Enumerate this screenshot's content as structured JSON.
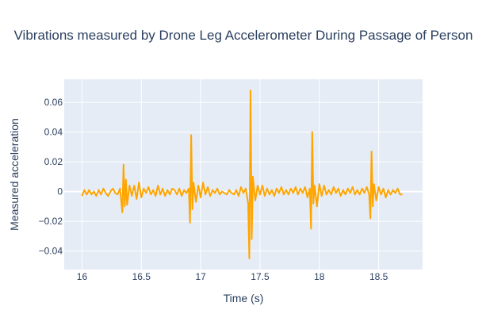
{
  "chart_data": {
    "type": "line",
    "title": "Vibrations measured by Drone Leg Accelerometer During Passage of Person",
    "xlabel": "Time (s)",
    "ylabel": "Measured acceleration",
    "xlim": [
      15.85,
      18.87
    ],
    "ylim": [
      -0.0525,
      0.0755
    ],
    "xticks": [
      16,
      16.5,
      17,
      17.5,
      18,
      18.5
    ],
    "xtick_labels": [
      "16",
      "16.5",
      "17",
      "17.5",
      "18",
      "18.5"
    ],
    "yticks": [
      -0.04,
      -0.02,
      0,
      0.02,
      0.04,
      0.06
    ],
    "ytick_labels": [
      "−0.04",
      "−0.02",
      "0",
      "0.02",
      "0.04",
      "0.06"
    ],
    "grid": true,
    "colors": {
      "line": "#FFA500",
      "plot_bg": "#E5ECF6",
      "grid": "#ffffff",
      "text": "#2a3f5f"
    },
    "series": [
      {
        "x": [
          16.0,
          16.02,
          16.04,
          16.06,
          16.08,
          16.1,
          16.12,
          16.14,
          16.16,
          16.18,
          16.2,
          16.22,
          16.24,
          16.26,
          16.28,
          16.3,
          16.32,
          16.34,
          16.35,
          16.36,
          16.37,
          16.38,
          16.4,
          16.42,
          16.44,
          16.46,
          16.48,
          16.5,
          16.52,
          16.54,
          16.56,
          16.58,
          16.6,
          16.62,
          16.64,
          16.66,
          16.68,
          16.7,
          16.72,
          16.74,
          16.76,
          16.78,
          16.8,
          16.82,
          16.84,
          16.86,
          16.88,
          16.9,
          16.91,
          16.92,
          16.93,
          16.94,
          16.96,
          16.98,
          17.0,
          17.02,
          17.04,
          17.06,
          17.08,
          17.1,
          17.12,
          17.14,
          17.16,
          17.18,
          17.2,
          17.22,
          17.24,
          17.26,
          17.28,
          17.3,
          17.32,
          17.34,
          17.36,
          17.38,
          17.4,
          17.41,
          17.42,
          17.43,
          17.44,
          17.46,
          17.48,
          17.5,
          17.52,
          17.54,
          17.56,
          17.58,
          17.6,
          17.62,
          17.64,
          17.66,
          17.68,
          17.7,
          17.72,
          17.74,
          17.76,
          17.78,
          17.8,
          17.82,
          17.84,
          17.86,
          17.88,
          17.9,
          17.92,
          17.93,
          17.94,
          17.95,
          17.96,
          17.98,
          18.0,
          18.02,
          18.04,
          18.06,
          18.08,
          18.1,
          18.12,
          18.14,
          18.16,
          18.18,
          18.2,
          18.22,
          18.24,
          18.26,
          18.28,
          18.3,
          18.32,
          18.34,
          18.36,
          18.38,
          18.4,
          18.42,
          18.43,
          18.44,
          18.45,
          18.46,
          18.48,
          18.5,
          18.52,
          18.54,
          18.56,
          18.58,
          18.6,
          18.62,
          18.64,
          18.66,
          18.68,
          18.7
        ],
        "y": [
          -0.003,
          0.001,
          -0.002,
          0.001,
          -0.002,
          0.0,
          -0.003,
          0.001,
          -0.002,
          0.002,
          -0.001,
          -0.003,
          0.0,
          0.002,
          -0.001,
          -0.002,
          0.002,
          -0.014,
          0.018,
          -0.01,
          0.008,
          -0.009,
          0.004,
          -0.003,
          0.004,
          -0.005,
          0.006,
          -0.004,
          0.002,
          -0.001,
          0.003,
          -0.002,
          0.001,
          -0.003,
          0.004,
          -0.002,
          0.002,
          -0.003,
          0.001,
          -0.002,
          0.002,
          0.001,
          -0.002,
          0.002,
          -0.003,
          0.001,
          -0.001,
          0.002,
          -0.021,
          0.038,
          -0.012,
          0.006,
          -0.007,
          0.004,
          -0.004,
          0.006,
          -0.002,
          0.003,
          -0.003,
          0.001,
          -0.001,
          0.002,
          -0.002,
          0.0,
          -0.001,
          -0.002,
          0.001,
          -0.001,
          -0.002,
          0.001,
          -0.003,
          0.003,
          -0.001,
          0.002,
          -0.008,
          -0.045,
          0.068,
          -0.032,
          0.01,
          -0.006,
          0.004,
          -0.002,
          0.004,
          -0.003,
          0.002,
          -0.002,
          0.001,
          -0.003,
          0.002,
          -0.001,
          0.003,
          -0.002,
          0.001,
          -0.002,
          0.002,
          -0.001,
          0.003,
          -0.002,
          0.002,
          -0.001,
          0.003,
          -0.004,
          0.002,
          -0.025,
          0.04,
          -0.008,
          0.004,
          -0.01,
          0.005,
          -0.003,
          0.004,
          -0.002,
          0.001,
          -0.002,
          0.003,
          -0.001,
          0.002,
          -0.003,
          0.001,
          -0.002,
          0.002,
          -0.001,
          0.003,
          -0.002,
          0.001,
          -0.002,
          0.002,
          -0.001,
          0.003,
          -0.002,
          -0.018,
          0.027,
          -0.01,
          0.005,
          -0.006,
          0.003,
          -0.002,
          0.002,
          -0.004,
          0.001,
          -0.002,
          0.001,
          -0.001,
          0.002,
          -0.002,
          -0.002
        ]
      }
    ]
  }
}
